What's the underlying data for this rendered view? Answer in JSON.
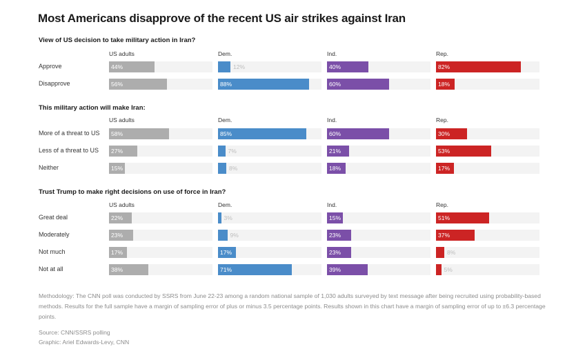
{
  "title": "Most Americans disapprove of the recent US air strikes against Iran",
  "colors": {
    "US adults": "#adadad",
    "Dem.": "#4a8cc9",
    "Ind.": "#7b4fa8",
    "Rep.": "#cc2424",
    "track": "#f3f3f3"
  },
  "chart_data": [
    {
      "type": "bar",
      "title": "View of US decision to take military action in Iran?",
      "groups": [
        "US adults",
        "Dem.",
        "Ind.",
        "Rep."
      ],
      "categories": [
        "Approve",
        "Disapprove"
      ],
      "series": [
        {
          "name": "US adults",
          "values": [
            44,
            56
          ]
        },
        {
          "name": "Dem.",
          "values": [
            12,
            88
          ]
        },
        {
          "name": "Ind.",
          "values": [
            40,
            60
          ]
        },
        {
          "name": "Rep.",
          "values": [
            82,
            18
          ]
        }
      ],
      "unit": "%",
      "xlim": [
        0,
        100
      ]
    },
    {
      "type": "bar",
      "title": "This military action will make Iran:",
      "groups": [
        "US adults",
        "Dem.",
        "Ind.",
        "Rep."
      ],
      "categories": [
        "More of a threat to US",
        "Less of a threat to US",
        "Neither"
      ],
      "series": [
        {
          "name": "US adults",
          "values": [
            58,
            27,
            15
          ]
        },
        {
          "name": "Dem.",
          "values": [
            85,
            7,
            8
          ]
        },
        {
          "name": "Ind.",
          "values": [
            60,
            21,
            18
          ]
        },
        {
          "name": "Rep.",
          "values": [
            30,
            53,
            17
          ]
        }
      ],
      "unit": "%",
      "xlim": [
        0,
        100
      ]
    },
    {
      "type": "bar",
      "title": "Trust Trump to make right decisions on use of force in Iran?",
      "groups": [
        "US adults",
        "Dem.",
        "Ind.",
        "Rep."
      ],
      "categories": [
        "Great deal",
        "Moderately",
        "Not much",
        "Not at all"
      ],
      "series": [
        {
          "name": "US adults",
          "values": [
            22,
            23,
            17,
            38
          ]
        },
        {
          "name": "Dem.",
          "values": [
            3,
            9,
            17,
            71
          ]
        },
        {
          "name": "Ind.",
          "values": [
            15,
            23,
            23,
            39
          ]
        },
        {
          "name": "Rep.",
          "values": [
            51,
            37,
            8,
            5
          ]
        }
      ],
      "unit": "%",
      "xlim": [
        0,
        100
      ]
    }
  ],
  "footer": {
    "methodology": "Methodology: The CNN poll was conducted by SSRS from June 22-23 among a random national sample of 1,030 adults surveyed by text message after being recruited using probability-based methods. Results for the full sample have a margin of sampling error of plus or minus 3.5 percentage points. Results shown in this chart have a margin of sampling error of up to ±6.3 percentage points.",
    "source": "Source: CNN/SSRS polling",
    "graphic": "Graphic: Ariel Edwards-Levy, CNN"
  }
}
